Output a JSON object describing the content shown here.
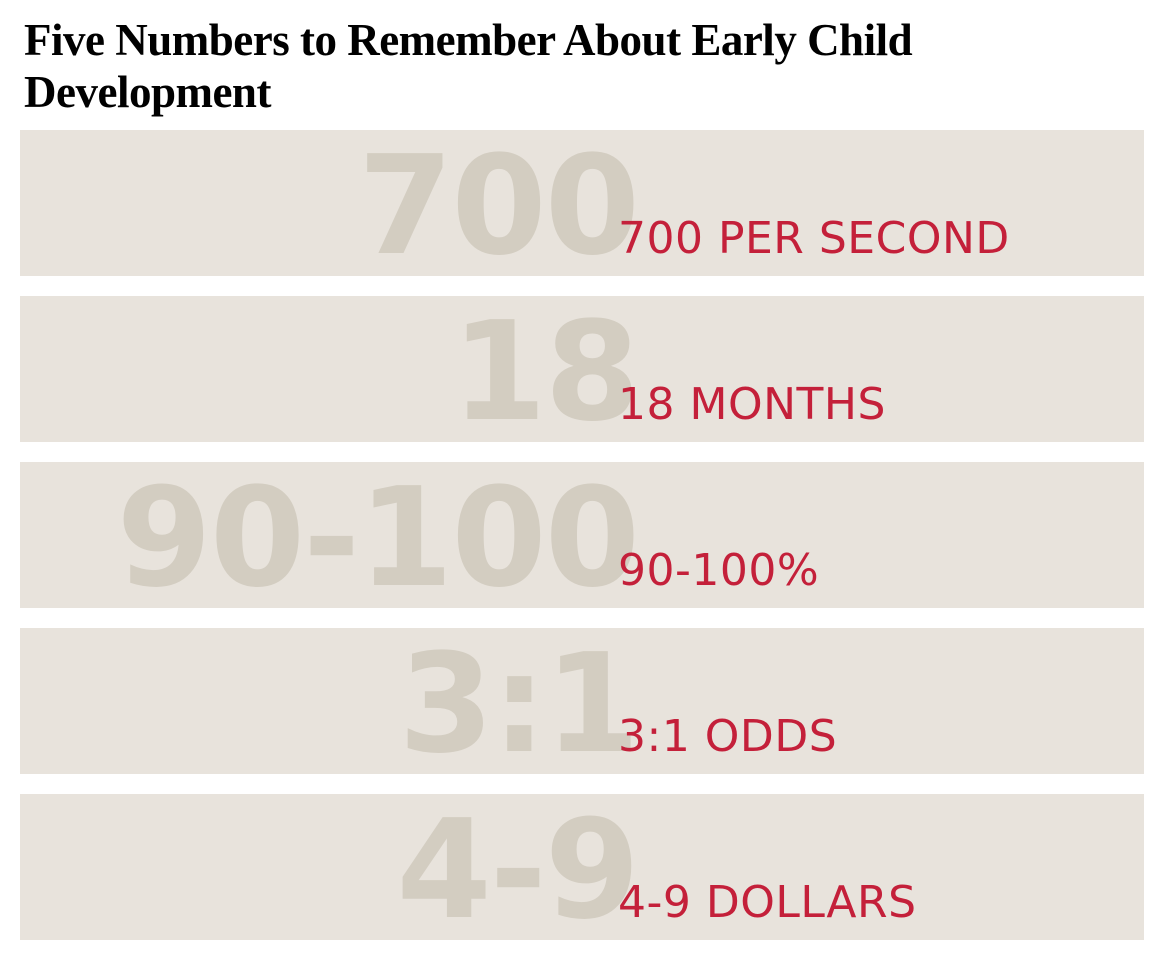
{
  "title": {
    "line1": "Five Numbers to Remember About Early Child",
    "line2": "Development"
  },
  "colors": {
    "band_bg": "#e8e3dc",
    "number_color": "#d3cdc1",
    "label_color": "#c4203a",
    "title_color": "#000000"
  },
  "rows": [
    {
      "number": "700",
      "label": "700 PER SECOND"
    },
    {
      "number": "18",
      "label": "18 MONTHS"
    },
    {
      "number": "90-100",
      "label": "90-100%"
    },
    {
      "number": "3:1",
      "label": "3:1 ODDS"
    },
    {
      "number": "4-9",
      "label": "4-9 DOLLARS"
    }
  ]
}
